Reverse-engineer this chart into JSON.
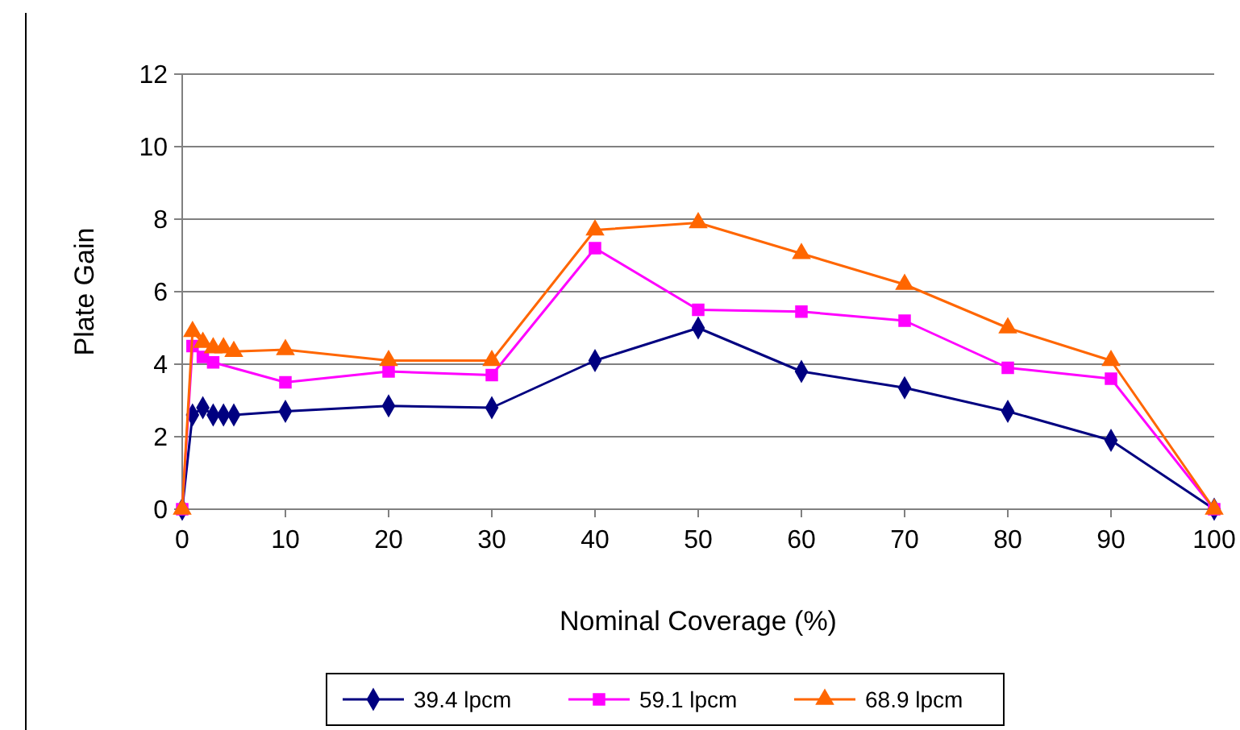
{
  "chart_data": {
    "type": "line",
    "xlabel": "Nominal Coverage (%)",
    "ylabel": "Plate Gain",
    "x": [
      0,
      1,
      2,
      3,
      4,
      5,
      10,
      20,
      30,
      40,
      50,
      60,
      70,
      80,
      90,
      100
    ],
    "xlim": [
      0,
      100
    ],
    "xticks": [
      0,
      10,
      20,
      30,
      40,
      50,
      60,
      70,
      80,
      90,
      100
    ],
    "ylim": [
      0,
      12
    ],
    "yticks": [
      0,
      2,
      4,
      6,
      8,
      10,
      12
    ],
    "grid": "y",
    "legend": "bottom",
    "series": [
      {
        "name": "39.4 lpcm",
        "color": "#000080",
        "marker": "diamond",
        "values": [
          0,
          2.6,
          2.8,
          2.6,
          2.6,
          2.6,
          2.7,
          2.85,
          2.8,
          4.1,
          5.0,
          3.8,
          3.35,
          2.7,
          1.9,
          0
        ]
      },
      {
        "name": "59.1 lpcm",
        "color": "#ff00ff",
        "marker": "square",
        "values": [
          0,
          4.5,
          4.2,
          4.05,
          null,
          null,
          3.5,
          3.8,
          3.7,
          7.2,
          5.5,
          5.45,
          5.2,
          3.9,
          3.6,
          0
        ]
      },
      {
        "name": "68.9 lpcm",
        "color": "#ff6600",
        "marker": "triangle",
        "values": [
          0,
          4.9,
          4.6,
          4.45,
          4.45,
          4.35,
          4.4,
          4.1,
          4.1,
          7.7,
          7.9,
          7.05,
          6.2,
          5.0,
          4.1,
          0
        ]
      }
    ]
  }
}
